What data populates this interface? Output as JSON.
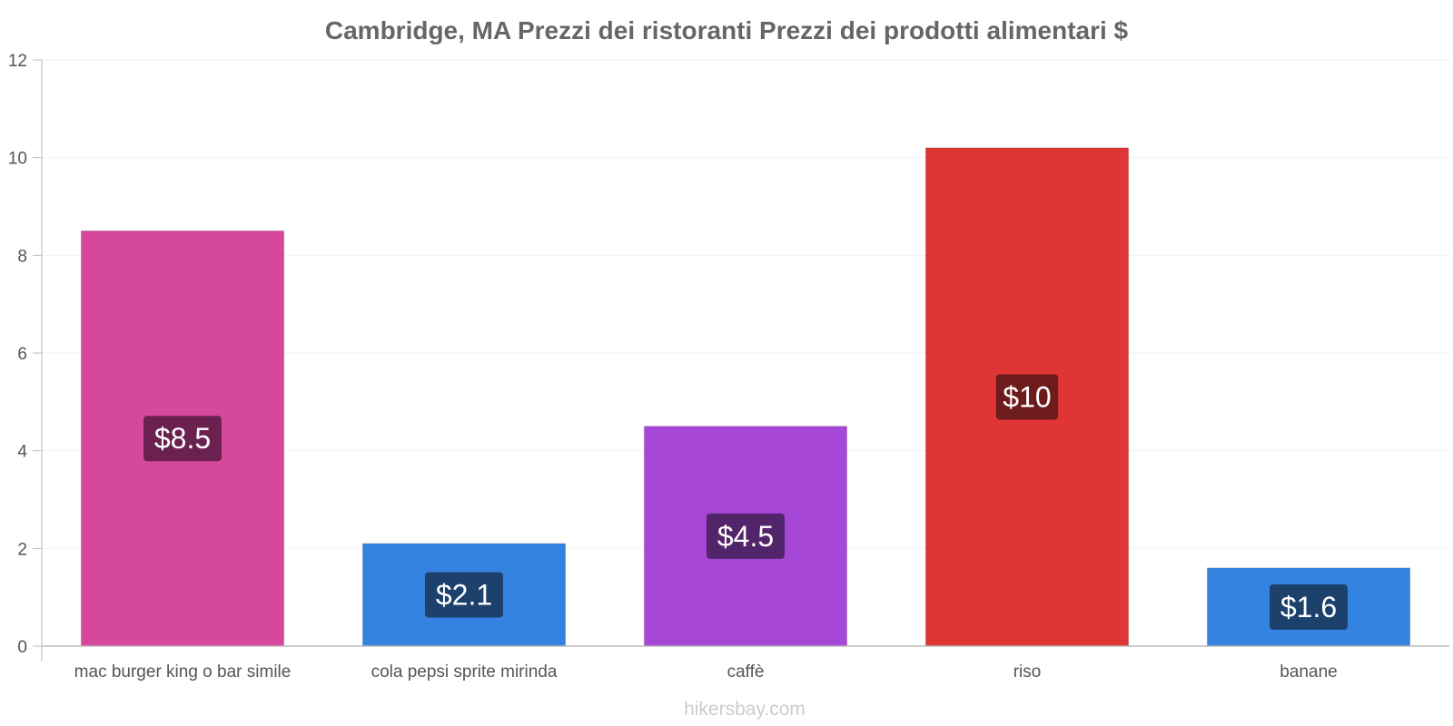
{
  "chart_data": {
    "type": "bar",
    "title": "Cambridge, MA Prezzi dei ristoranti Prezzi dei prodotti alimentari $",
    "categories": [
      "mac burger king o bar simile",
      "cola pepsi sprite mirinda",
      "caffè",
      "riso",
      "banane"
    ],
    "values": [
      8.5,
      2.1,
      4.5,
      10.2,
      1.6
    ],
    "value_labels": [
      "$8.5",
      "$2.1",
      "$4.5",
      "$10",
      "$1.6"
    ],
    "colors": [
      "#d6489b",
      "#3483e0",
      "#a747d8",
      "#e03535",
      "#3483e0"
    ],
    "label_bg_colors": [
      "#6b2150",
      "#1c416c",
      "#522469",
      "#6e1b1b",
      "#1c416c"
    ],
    "ylim": [
      0,
      12
    ],
    "yticks": [
      0,
      2,
      4,
      6,
      8,
      10,
      12
    ],
    "xlabel": "",
    "ylabel": "",
    "grid": true
  },
  "footer": {
    "credit": "hikersbay.com"
  }
}
